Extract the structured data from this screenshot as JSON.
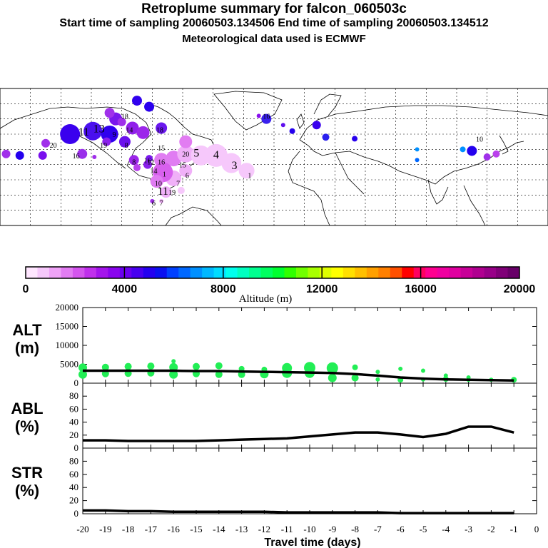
{
  "header": {
    "title": "Retroplume summary for falcon_060503c",
    "sampling": "Start time of sampling 20060503.134506     End time of sampling 20060503.134512",
    "met": "Meteorological data used is ECMWF"
  },
  "colorbar": {
    "label": "Altitude (m)",
    "ticks": [
      "0",
      "4000",
      "8000",
      "12000",
      "16000",
      "20000"
    ],
    "colors": [
      "#ffe6ff",
      "#f6c8fb",
      "#efa3f7",
      "#e27cf2",
      "#d455ee",
      "#c030ec",
      "#a415ec",
      "#8a05ee",
      "#6a00f0",
      "#4800f0",
      "#2400f0",
      "#0a10f0",
      "#0040ff",
      "#0068ff",
      "#0090ff",
      "#00b8ff",
      "#00dcff",
      "#00ffee",
      "#00ffc0",
      "#00ff90",
      "#00ff60",
      "#00ff30",
      "#30ff00",
      "#70ff00",
      "#a8ff00",
      "#e0ff00",
      "#ffff00",
      "#ffe000",
      "#ffc000",
      "#ffa000",
      "#ff8000",
      "#ff5000",
      "#ff0000",
      "#ff0060",
      "#ff0090",
      "#f000a0",
      "#e000a0",
      "#c80098",
      "#b00090",
      "#980088",
      "#800078",
      "#680068"
    ]
  },
  "map_labels": [
    {
      "text": "11",
      "lon": -125,
      "lat": 61
    },
    {
      "text": "13",
      "lon": -115,
      "lat": 63
    },
    {
      "text": "9",
      "lon": -105,
      "lat": 60
    },
    {
      "text": "18",
      "lon": -98,
      "lat": 72
    },
    {
      "text": "14",
      "lon": -95,
      "lat": 63
    },
    {
      "text": "8",
      "lon": -97,
      "lat": 53
    },
    {
      "text": "19",
      "lon": -112,
      "lat": 53
    },
    {
      "text": "20",
      "lon": -145,
      "lat": 53
    },
    {
      "text": "16",
      "lon": -130,
      "lat": 46
    },
    {
      "text": "18",
      "lon": -75,
      "lat": 63
    },
    {
      "text": "16",
      "lon": -5,
      "lat": 72
    },
    {
      "text": "10",
      "lon": 135,
      "lat": 57
    },
    {
      "text": "8",
      "lon": -92,
      "lat": 42
    },
    {
      "text": "16",
      "lon": -74,
      "lat": 42
    },
    {
      "text": "12",
      "lon": -81,
      "lat": 42
    },
    {
      "text": "15",
      "lon": -74,
      "lat": 51
    },
    {
      "text": "20",
      "lon": -58,
      "lat": 47
    },
    {
      "text": "15",
      "lon": -60,
      "lat": 40
    },
    {
      "text": "5",
      "lon": -51,
      "lat": 47
    },
    {
      "text": "4",
      "lon": -38,
      "lat": 46
    },
    {
      "text": "3",
      "lon": -26,
      "lat": 39
    },
    {
      "text": "1",
      "lon": -16,
      "lat": 33
    },
    {
      "text": "6",
      "lon": -57,
      "lat": 33
    },
    {
      "text": "7",
      "lon": -63,
      "lat": 28
    },
    {
      "text": "1",
      "lon": -72,
      "lat": 34
    },
    {
      "text": "10",
      "lon": -76,
      "lat": 28
    },
    {
      "text": "11",
      "lon": -73,
      "lat": 22
    },
    {
      "text": "19",
      "lon": -67,
      "lat": 22
    },
    {
      "text": "6",
      "lon": -79,
      "lat": 15
    },
    {
      "text": "7",
      "lon": -74,
      "lat": 15
    },
    {
      "text": "14",
      "lon": -79,
      "lat": 36
    },
    {
      "text": "16",
      "lon": -83,
      "lat": 43
    }
  ],
  "chart_data": [
    {
      "type": "scatter",
      "panel": "ALT",
      "ylabel": "ALT\n(m)",
      "ylabel_lines": [
        "ALT",
        "(m)"
      ],
      "ylim": [
        0,
        20000
      ],
      "yticks": [
        "0",
        "5000",
        "10000",
        "15000",
        "20000"
      ],
      "xlim": [
        -20,
        0
      ],
      "median_line": {
        "x": [
          -20,
          -19,
          -18,
          -17,
          -16,
          -15,
          -14,
          -13,
          -12,
          -11,
          -10,
          -9,
          -8,
          -7,
          -6,
          -5,
          -4,
          -3,
          -2,
          -1
        ],
        "y": [
          3300,
          3300,
          3300,
          3300,
          3300,
          3200,
          3200,
          3100,
          3000,
          2900,
          2800,
          2700,
          2400,
          2000,
          1500,
          1200,
          1000,
          900,
          800,
          700
        ]
      },
      "points": [
        {
          "x": -20,
          "y": 4100
        },
        {
          "x": -20,
          "y": 2300
        },
        {
          "x": -19,
          "y": 4200
        },
        {
          "x": -19,
          "y": 2500
        },
        {
          "x": -18,
          "y": 4400
        },
        {
          "x": -18,
          "y": 2600
        },
        {
          "x": -17,
          "y": 4500
        },
        {
          "x": -17,
          "y": 2700
        },
        {
          "x": -16,
          "y": 5800
        },
        {
          "x": -16,
          "y": 4200
        },
        {
          "x": -16,
          "y": 2300
        },
        {
          "x": -15,
          "y": 4400
        },
        {
          "x": -15,
          "y": 2500
        },
        {
          "x": -14,
          "y": 4600
        },
        {
          "x": -14,
          "y": 2300
        },
        {
          "x": -13,
          "y": 3800
        },
        {
          "x": -13,
          "y": 2300
        },
        {
          "x": -12,
          "y": 3600
        },
        {
          "x": -12,
          "y": 2400
        },
        {
          "x": -11,
          "y": 4000
        },
        {
          "x": -11,
          "y": 2700
        },
        {
          "x": -10,
          "y": 4100
        },
        {
          "x": -10,
          "y": 2700
        },
        {
          "x": -9,
          "y": 4000
        },
        {
          "x": -9,
          "y": 1400
        },
        {
          "x": -8,
          "y": 4200
        },
        {
          "x": -8,
          "y": 1400
        },
        {
          "x": -7,
          "y": 3000
        },
        {
          "x": -7,
          "y": 1000
        },
        {
          "x": -6,
          "y": 3800
        },
        {
          "x": -6,
          "y": 900
        },
        {
          "x": -5,
          "y": 3300
        },
        {
          "x": -5,
          "y": 1000
        },
        {
          "x": -4,
          "y": 2000
        },
        {
          "x": -4,
          "y": 1100
        },
        {
          "x": -3,
          "y": 1500
        },
        {
          "x": -3,
          "y": 900
        },
        {
          "x": -2,
          "y": 900
        },
        {
          "x": -1,
          "y": 900
        }
      ],
      "point_sizes": [
        6,
        6,
        5,
        5,
        5,
        5,
        5,
        5,
        3,
        6,
        6,
        5,
        5,
        5,
        5,
        4,
        5,
        4,
        6,
        7,
        7,
        8,
        7,
        8,
        6,
        4,
        5,
        3,
        3,
        3,
        4,
        3,
        3,
        3,
        4,
        3,
        3,
        3,
        4
      ]
    },
    {
      "type": "line",
      "panel": "ABL",
      "ylabel": "ABL\n(%)",
      "ylabel_lines": [
        "ABL",
        "(%)"
      ],
      "ylim": [
        0,
        100
      ],
      "yticks": [
        "0",
        "20",
        "40",
        "60",
        "80"
      ],
      "xlim": [
        -20,
        0
      ],
      "x": [
        -20,
        -19,
        -18,
        -17,
        -16,
        -15,
        -14,
        -13,
        -12,
        -11,
        -10,
        -9,
        -8,
        -7,
        -6,
        -5,
        -4,
        -3,
        -2,
        -1
      ],
      "values": [
        12,
        12,
        11,
        11,
        11,
        11,
        12,
        13,
        14,
        15,
        18,
        21,
        24,
        24,
        21,
        17,
        22,
        33,
        33,
        24
      ]
    },
    {
      "type": "line",
      "panel": "STR",
      "ylabel": "STR\n(%)",
      "ylabel_lines": [
        "STR",
        "(%)"
      ],
      "ylim": [
        0,
        100
      ],
      "yticks": [
        "0",
        "20",
        "40",
        "60",
        "80"
      ],
      "xlim": [
        -20,
        0
      ],
      "x": [
        -20,
        -19,
        -18,
        -17,
        -16,
        -15,
        -14,
        -13,
        -12,
        -11,
        -10,
        -9,
        -8,
        -7,
        -6,
        -5,
        -4,
        -3,
        -2,
        -1
      ],
      "values": [
        5,
        5,
        4,
        4,
        3,
        3,
        3,
        3,
        3,
        2,
        2,
        2,
        2,
        2,
        1,
        1,
        1,
        1,
        1,
        1
      ]
    }
  ],
  "xaxis": {
    "ticks": [
      "-20",
      "-19",
      "-18",
      "-17",
      "-16",
      "-15",
      "-14",
      "-13",
      "-12",
      "-11",
      "-10",
      "-9",
      "-8",
      "-7",
      "-6",
      "-5",
      "-4",
      "-3",
      "-2",
      "-1",
      "0"
    ],
    "label": "Travel time (days)"
  }
}
